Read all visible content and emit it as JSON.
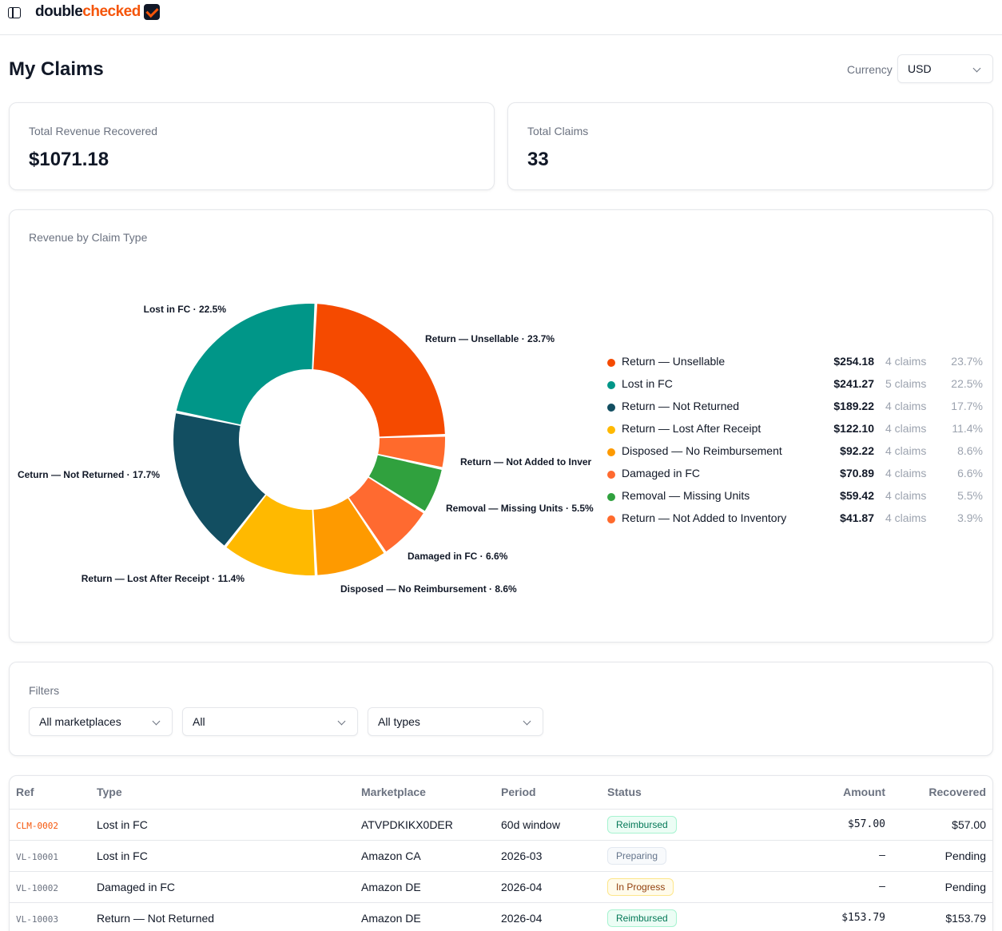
{
  "app": {
    "logo_part1": "double",
    "logo_part2": "checked"
  },
  "header": {
    "title": "My Claims",
    "currency_label": "Currency",
    "currency_value": "USD"
  },
  "stats": [
    {
      "label": "Total Revenue Recovered",
      "value": "$1071.18"
    },
    {
      "label": "Total Claims",
      "value": "33"
    }
  ],
  "revenue_card": {
    "title": "Revenue by Claim Type"
  },
  "chart_data": {
    "type": "pie",
    "title": "Revenue by Claim Type",
    "donut": true,
    "slices": [
      {
        "name": "Return — Unsellable",
        "value": 254.18,
        "amount": "$254.18",
        "claims": "4 claims",
        "percent": "23.7%",
        "color": "#f54a00"
      },
      {
        "name": "Return — Not Added to Inventory",
        "value": 41.87,
        "amount": "$41.87",
        "claims": "4 claims",
        "percent": "3.9%",
        "color": "#ff6a2c"
      },
      {
        "name": "Removal — Missing Units",
        "value": 59.42,
        "amount": "$59.42",
        "claims": "4 claims",
        "percent": "5.5%",
        "color": "#30a13e"
      },
      {
        "name": "Damaged in FC",
        "value": 70.89,
        "amount": "$70.89",
        "claims": "4 claims",
        "percent": "6.6%",
        "color": "#ff6a30"
      },
      {
        "name": "Disposed — No Reimbursement",
        "value": 92.22,
        "amount": "$92.22",
        "claims": "4 claims",
        "percent": "8.6%",
        "color": "#fe9a00"
      },
      {
        "name": "Return — Lost After Receipt",
        "value": 122.1,
        "amount": "$122.10",
        "claims": "4 claims",
        "percent": "11.4%",
        "color": "#ffb900"
      },
      {
        "name": "Return — Not Returned",
        "value": 189.22,
        "amount": "$189.22",
        "claims": "4 claims",
        "percent": "17.7%",
        "color": "#124e61"
      },
      {
        "name": "Lost in FC",
        "value": 241.27,
        "amount": "$241.27",
        "claims": "5 claims",
        "percent": "22.5%",
        "color": "#009688"
      }
    ],
    "slice_labels": [
      "Return — Unsellable · 23.7%",
      "Return — Not Added to Inver",
      "Removal — Missing Units · 5.5%",
      "Damaged in FC · 6.6%",
      "Disposed — No Reimbursement · 8.6%",
      "Return — Lost After Receipt · 11.4%",
      "Ceturn — Not Returned · 17.7%",
      "Lost in FC · 22.5%"
    ],
    "legend_position": "right"
  },
  "legend": [
    {
      "name": "Return — Unsellable",
      "amount": "$254.18",
      "claims": "4 claims",
      "percent": "23.7%",
      "color": "#f54a00"
    },
    {
      "name": "Lost in FC",
      "amount": "$241.27",
      "claims": "5 claims",
      "percent": "22.5%",
      "color": "#009688"
    },
    {
      "name": "Return — Not Returned",
      "amount": "$189.22",
      "claims": "4 claims",
      "percent": "17.7%",
      "color": "#124e61"
    },
    {
      "name": "Return — Lost After Receipt",
      "amount": "$122.10",
      "claims": "4 claims",
      "percent": "11.4%",
      "color": "#ffb900"
    },
    {
      "name": "Disposed — No Reimbursement",
      "amount": "$92.22",
      "claims": "4 claims",
      "percent": "8.6%",
      "color": "#fe9a00"
    },
    {
      "name": "Damaged in FC",
      "amount": "$70.89",
      "claims": "4 claims",
      "percent": "6.6%",
      "color": "#ff6a30"
    },
    {
      "name": "Removal — Missing Units",
      "amount": "$59.42",
      "claims": "4 claims",
      "percent": "5.5%",
      "color": "#30a13e"
    },
    {
      "name": "Return — Not Added to Inventory",
      "amount": "$41.87",
      "claims": "4 claims",
      "percent": "3.9%",
      "color": "#ff6a2c"
    }
  ],
  "filters": {
    "title": "Filters",
    "marketplace": "All marketplaces",
    "status": "All",
    "type": "All types"
  },
  "table": {
    "headers": [
      "Ref",
      "Type",
      "Marketplace",
      "Period",
      "Status",
      "Amount",
      "Recovered"
    ],
    "rows": [
      {
        "ref": "CLM-0002",
        "type": "Lost in FC",
        "marketplace": "ATVPDKIKX0DER",
        "period": "60d window",
        "status": "Reimbursed",
        "amount": "$57.00",
        "recovered": "$57.00"
      },
      {
        "ref": "VL-10001",
        "type": "Lost in FC",
        "marketplace": "Amazon CA",
        "period": "2026-03",
        "status": "Preparing",
        "amount": "–",
        "recovered": "Pending"
      },
      {
        "ref": "VL-10002",
        "type": "Damaged in FC",
        "marketplace": "Amazon DE",
        "period": "2026-04",
        "status": "In Progress",
        "amount": "–",
        "recovered": "Pending"
      },
      {
        "ref": "VL-10003",
        "type": "Return — Not Returned",
        "marketplace": "Amazon DE",
        "period": "2026-04",
        "status": "Reimbursed",
        "amount": "$153.79",
        "recovered": "$153.79"
      }
    ]
  },
  "status_colors": {
    "Reimbursed": {
      "bg": "#ecfdf5",
      "fg": "#047857",
      "border": "#a7f3d0"
    },
    "Preparing": {
      "bg": "#f8fafc",
      "fg": "#64748b",
      "border": "#e2e8f0"
    },
    "In Progress": {
      "bg": "#fffbeb",
      "fg": "#92400e",
      "border": "#fde68a"
    }
  }
}
